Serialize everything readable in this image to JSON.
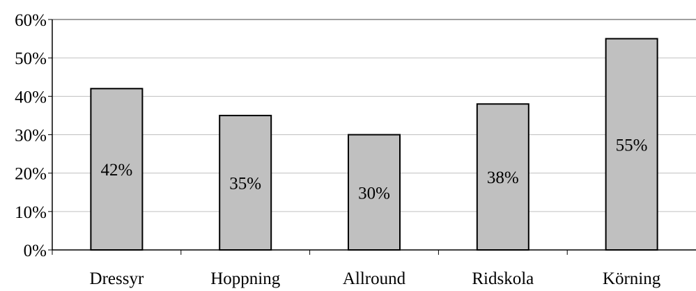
{
  "chart_data": {
    "type": "bar",
    "categories": [
      "Dressyr",
      "Hoppning",
      "Allround",
      "Ridskola",
      "Körning"
    ],
    "values": [
      42,
      35,
      30,
      38,
      55
    ],
    "data_labels": [
      "42%",
      "35%",
      "30%",
      "38%",
      "55%"
    ],
    "y_ticks": [
      "0%",
      "10%",
      "20%",
      "30%",
      "40%",
      "50%",
      "60%"
    ],
    "ylim": [
      0,
      60
    ],
    "grid": true,
    "legend": false,
    "bar_color": "#c0c0c0",
    "bar_stroke": "#000000",
    "grid_color": "#c0c0c0"
  }
}
